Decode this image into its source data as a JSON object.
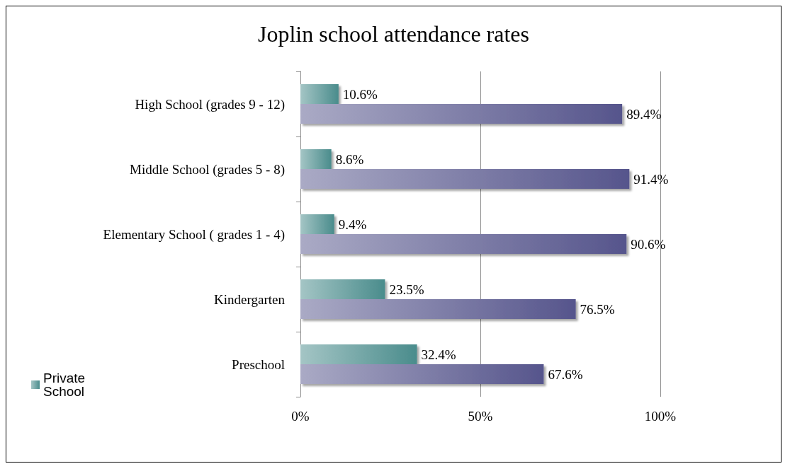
{
  "chart_data": {
    "type": "bar",
    "orientation": "horizontal",
    "title": "Joplin school attendance rates",
    "categories": [
      "High School (grades 9 - 12)",
      "Middle School (grades 5 - 8)",
      "Elementary School ( grades 1 - 4)",
      "Kindergarten",
      "Preschool"
    ],
    "series": [
      {
        "name": "Private School",
        "color": "#4a8c8c",
        "values": [
          10.6,
          8.6,
          9.4,
          23.5,
          32.4
        ],
        "value_labels": [
          "10.6%",
          "8.6%",
          "9.4%",
          "23.5%",
          "32.4%"
        ]
      },
      {
        "color": "#56558c",
        "values": [
          89.4,
          91.4,
          90.6,
          76.5,
          67.6
        ],
        "value_labels": [
          "89.4%",
          "91.4%",
          "90.6%",
          "76.5%",
          "67.6%"
        ]
      }
    ],
    "xlim": [
      0,
      100
    ],
    "xticks": [
      {
        "value": 0,
        "label": "0%"
      },
      {
        "value": 50,
        "label": "50%"
      },
      {
        "value": 100,
        "label": "100%"
      }
    ],
    "grid": "x",
    "legend": "bottom left"
  }
}
